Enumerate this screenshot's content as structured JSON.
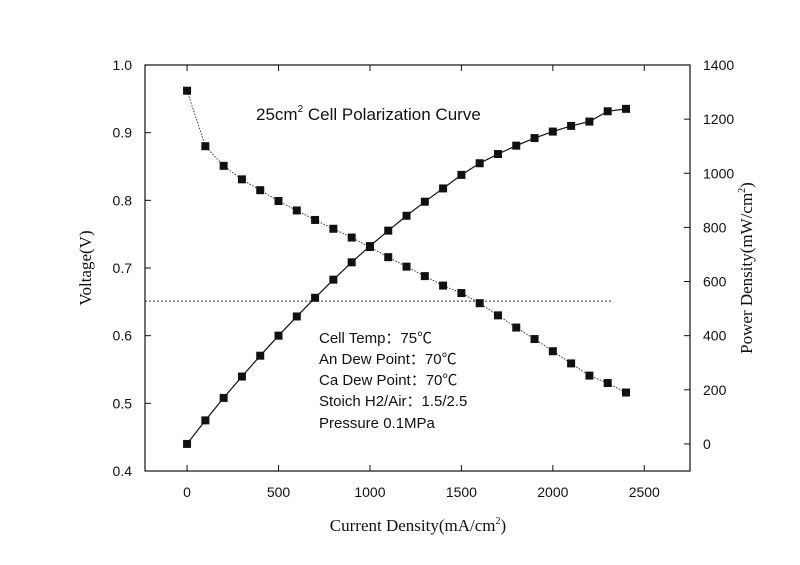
{
  "chart_data": {
    "type": "line",
    "title_main": "25cm",
    "title_sup": "2",
    "title_rest": " Cell Polarization Curve",
    "xlabel_main": "Current Density(mA/cm",
    "xlabel_sup": "2",
    "xlabel_close": ")",
    "ylabel_left": "Voltage(V)",
    "ylabel_right_main": "Power Density(mW/cm",
    "ylabel_right_sup": "2",
    "ylabel_right_close": ")",
    "xlim": [
      -230,
      2750
    ],
    "ylim_left": [
      0.4,
      1.0
    ],
    "ylim_right": [
      -100,
      1400
    ],
    "x_ticks": [
      0,
      500,
      1000,
      1500,
      2000,
      2500
    ],
    "y_left_ticks": [
      0.4,
      0.5,
      0.6,
      0.7,
      0.8,
      0.9,
      1.0
    ],
    "y_left_tick_labels": [
      "0.4",
      "0.5",
      "0.6",
      "0.7",
      "0.8",
      "0.9",
      "1.0"
    ],
    "y_right_ticks": [
      0,
      200,
      400,
      600,
      800,
      1000,
      1200,
      1400
    ],
    "grid": false,
    "x": [
      0,
      100,
      200,
      300,
      400,
      500,
      600,
      700,
      800,
      900,
      1000,
      1100,
      1200,
      1300,
      1400,
      1500,
      1600,
      1700,
      1800,
      1900,
      2000,
      2100,
      2200,
      2300,
      2400
    ],
    "series": [
      {
        "axis": "left",
        "marker": "square",
        "values": [
          0.962,
          0.88,
          0.851,
          0.831,
          0.815,
          0.799,
          0.785,
          0.771,
          0.758,
          0.745,
          0.731,
          0.716,
          0.702,
          0.688,
          0.674,
          0.663,
          0.648,
          0.63,
          0.612,
          0.595,
          0.577,
          0.559,
          0.541,
          0.53,
          0.516
        ]
      },
      {
        "axis": "right",
        "marker": "square",
        "values": [
          0,
          87,
          170,
          249,
          326,
          400,
          471,
          540,
          607,
          671,
          731,
          788,
          843,
          895,
          944,
          994,
          1037,
          1071,
          1102,
          1130,
          1154,
          1175,
          1191,
          1229,
          1238
        ]
      }
    ],
    "reference_line": {
      "axis": "left",
      "y": 0.651,
      "x_end": 2320,
      "style": "dotted"
    },
    "annotations": [
      "Cell Temp：75℃",
      "An Dew Point：70℃",
      "Ca Dew Point：70℃",
      "Stoich H2/Air：1.5/2.5",
      "Pressure 0.1MPa"
    ]
  }
}
